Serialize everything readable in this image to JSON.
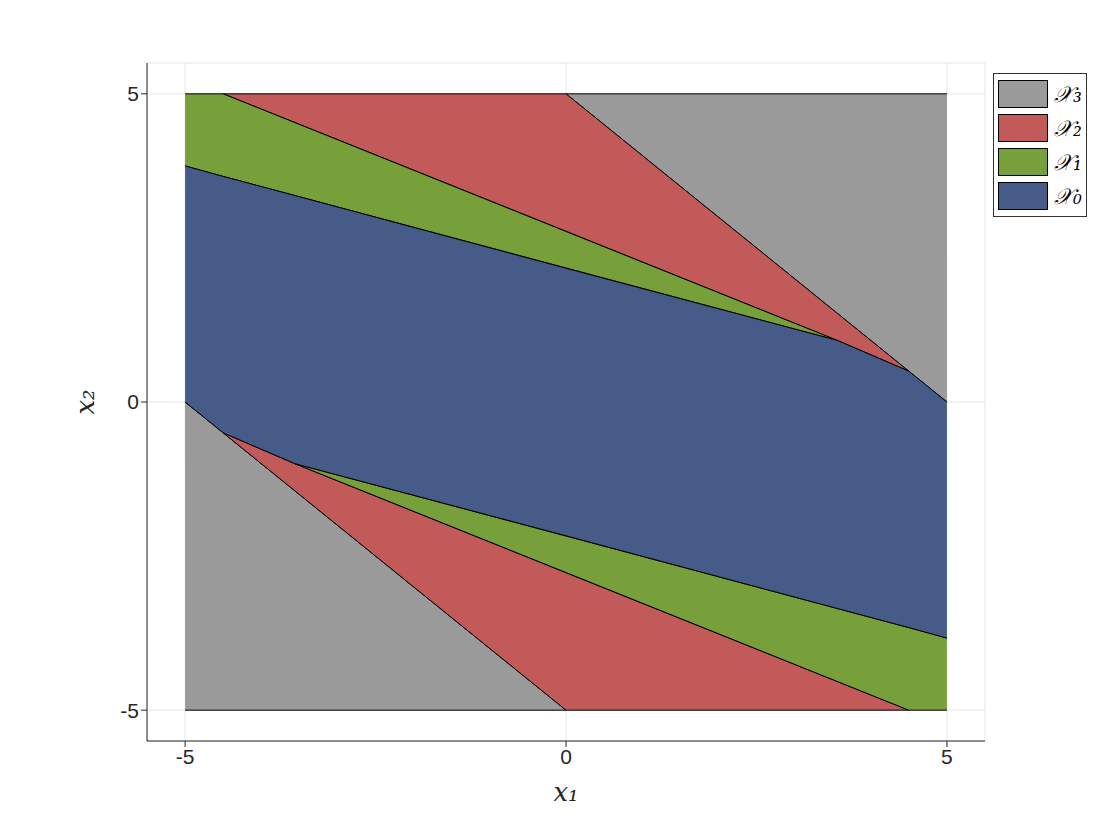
{
  "chart_data": {
    "type": "area",
    "x_label": "x₁",
    "y_label": "x₂",
    "xlim": [
      -5.5,
      5.5
    ],
    "ylim": [
      -5.5,
      5.5
    ],
    "xticks": [
      -5,
      0,
      5
    ],
    "yticks": [
      -5,
      0,
      5
    ],
    "grid": true,
    "legend": "right",
    "series": [
      {
        "name": "𝒳₃",
        "color": "#9a9a9a",
        "pieces": [
          {
            "x": [
              0,
              5
            ],
            "lower": [
              5,
              0
            ],
            "upper": [
              5,
              5
            ]
          },
          {
            "x": [
              -5,
              0
            ],
            "lower": [
              -5,
              -5
            ],
            "upper": [
              0,
              -5
            ]
          }
        ]
      },
      {
        "name": "𝒳₂",
        "color": "#c25a5a",
        "pieces": [
          {
            "x": [
              -4.5,
              0,
              3.56,
              4.5
            ],
            "lower": [
              5,
              2.77,
              1.0,
              0.5
            ],
            "upper": [
              5,
              5,
              1.44,
              0.5
            ]
          },
          {
            "x": [
              -4.5,
              -3.56,
              0,
              4.5
            ],
            "lower": [
              -0.5,
              -1.44,
              -5,
              -5
            ],
            "upper": [
              -0.5,
              -1.0,
              -2.77,
              -5
            ]
          }
        ]
      },
      {
        "name": "𝒳₁",
        "color": "#77a03a",
        "pieces": [
          {
            "x": [
              -5,
              -4.5,
              3.56
            ],
            "lower": [
              3.83,
              3.66,
              1.0
            ],
            "upper": [
              5,
              5,
              1.0
            ]
          },
          {
            "x": [
              -3.56,
              4.5,
              5
            ],
            "lower": [
              -1.0,
              -5,
              -5
            ],
            "upper": [
              -1.0,
              -3.66,
              -3.83
            ]
          }
        ]
      },
      {
        "name": "𝒳₀",
        "color": "#465b87",
        "pieces": [
          {
            "x": [
              -5,
              -4.5,
              -3.56,
              0,
              3.56,
              4.5,
              5
            ],
            "lower": [
              0,
              -0.5,
              -1.0,
              -2.17,
              -3.35,
              -3.66,
              -3.83
            ],
            "upper": [
              3.83,
              3.66,
              3.35,
              2.17,
              1.0,
              0.5,
              0
            ]
          }
        ]
      }
    ]
  }
}
